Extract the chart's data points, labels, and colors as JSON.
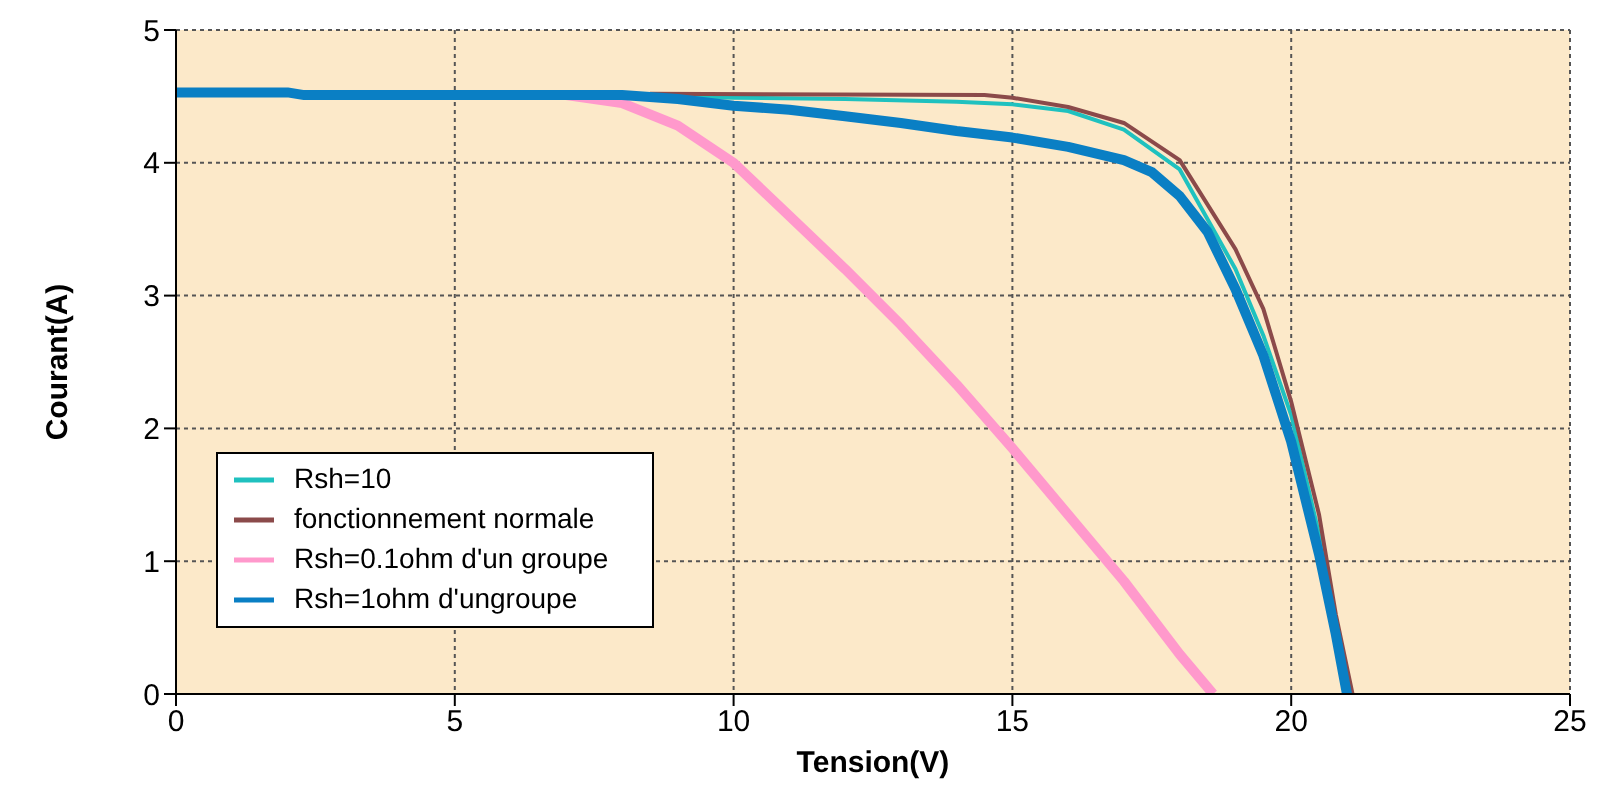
{
  "chart_data": {
    "type": "line",
    "xlabel": "Tension(V)",
    "ylabel": "Courant(A)",
    "xlim": [
      0,
      25
    ],
    "xticks": [
      0,
      5,
      10,
      15,
      20,
      25
    ],
    "ylim": [
      0,
      5
    ],
    "yticks": [
      0,
      1,
      2,
      3,
      4,
      5
    ],
    "grid": true,
    "legend": "bottom left",
    "line_style": "solid",
    "marker": "none",
    "series": [
      {
        "name": "Rsh=10",
        "color": "#1fc1bf",
        "x": [
          2.3,
          8,
          10,
          12,
          14,
          15,
          16,
          17,
          18,
          19,
          19.5,
          20,
          20.5,
          20.8,
          21
        ],
        "values": [
          4.51,
          4.51,
          4.49,
          4.48,
          4.46,
          4.44,
          4.39,
          4.25,
          3.95,
          3.2,
          2.7,
          2.1,
          1.2,
          0.5,
          0
        ]
      },
      {
        "name": "fonctionnement normale",
        "color": "#8b4a4a",
        "x": [
          8.5,
          14.5,
          15,
          16,
          17,
          18,
          19,
          19.5,
          20,
          20.5,
          20.8,
          21.1
        ],
        "values": [
          4.52,
          4.51,
          4.49,
          4.42,
          4.3,
          4.02,
          3.35,
          2.9,
          2.2,
          1.35,
          0.6,
          0
        ]
      },
      {
        "name": "Rsh=0.1ohm d'un groupe",
        "color": "#ff99cc",
        "x": [
          7,
          8,
          9,
          10,
          11,
          12,
          13,
          14,
          15,
          16,
          17,
          18,
          18.6
        ],
        "values": [
          4.51,
          4.45,
          4.28,
          4.0,
          3.6,
          3.2,
          2.78,
          2.33,
          1.85,
          1.35,
          0.85,
          0.3,
          0
        ]
      },
      {
        "name": "Rsh=1ohm d'ungroupe",
        "color": "#0a7fc4",
        "x": [
          0,
          2,
          2.3,
          8,
          9,
          10,
          11,
          12,
          13,
          14,
          15,
          16,
          17,
          17.5,
          18,
          18.5,
          19,
          19.5,
          20,
          20.5,
          20.8,
          21
        ],
        "values": [
          4.53,
          4.53,
          4.51,
          4.51,
          4.48,
          4.43,
          4.4,
          4.35,
          4.3,
          4.24,
          4.19,
          4.12,
          4.02,
          3.93,
          3.75,
          3.48,
          3.05,
          2.55,
          1.9,
          1.05,
          0.45,
          0
        ]
      }
    ]
  }
}
